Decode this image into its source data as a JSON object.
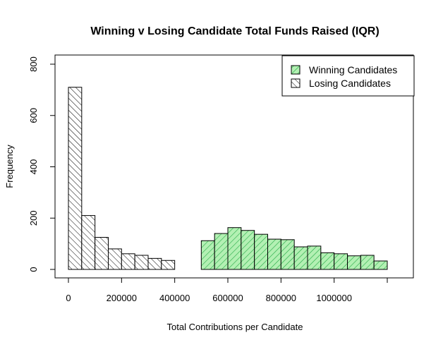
{
  "chart_data": {
    "type": "bar",
    "title": "Winning v Losing Candidate Total Funds Raised (IQR)",
    "xlabel": "Total Contributions per Candidate",
    "ylabel": "Frequency",
    "xlim": [
      -50000,
      1300000
    ],
    "ylim": [
      0,
      800
    ],
    "bin_width": 50000,
    "x_ticks": [
      0,
      200000,
      400000,
      600000,
      800000,
      1000000,
      1200000
    ],
    "x_tick_labels": [
      "0",
      "200000",
      "400000",
      "600000",
      "800000",
      "1000000",
      ""
    ],
    "y_ticks": [
      0,
      200,
      400,
      600,
      800
    ],
    "y_tick_labels": [
      "0",
      "200",
      "400",
      "600",
      "800"
    ],
    "legend_position": "top-right",
    "series": [
      {
        "name": "Winning Candidates",
        "fill": "#b3f0b3",
        "hatch": "#22aa44",
        "bin_starts": [
          500000,
          550000,
          600000,
          650000,
          700000,
          750000,
          800000,
          850000,
          900000,
          950000,
          1000000,
          1050000,
          1100000,
          1150000
        ],
        "values": [
          112,
          140,
          163,
          152,
          137,
          118,
          116,
          88,
          91,
          65,
          61,
          53,
          55,
          33
        ]
      },
      {
        "name": "Losing Candidates",
        "fill": "#ffffff",
        "hatch": "#000000",
        "bin_starts": [
          0,
          50000,
          100000,
          150000,
          200000,
          250000,
          300000,
          350000
        ],
        "values": [
          710,
          210,
          125,
          80,
          61,
          55,
          43,
          35
        ]
      }
    ]
  }
}
